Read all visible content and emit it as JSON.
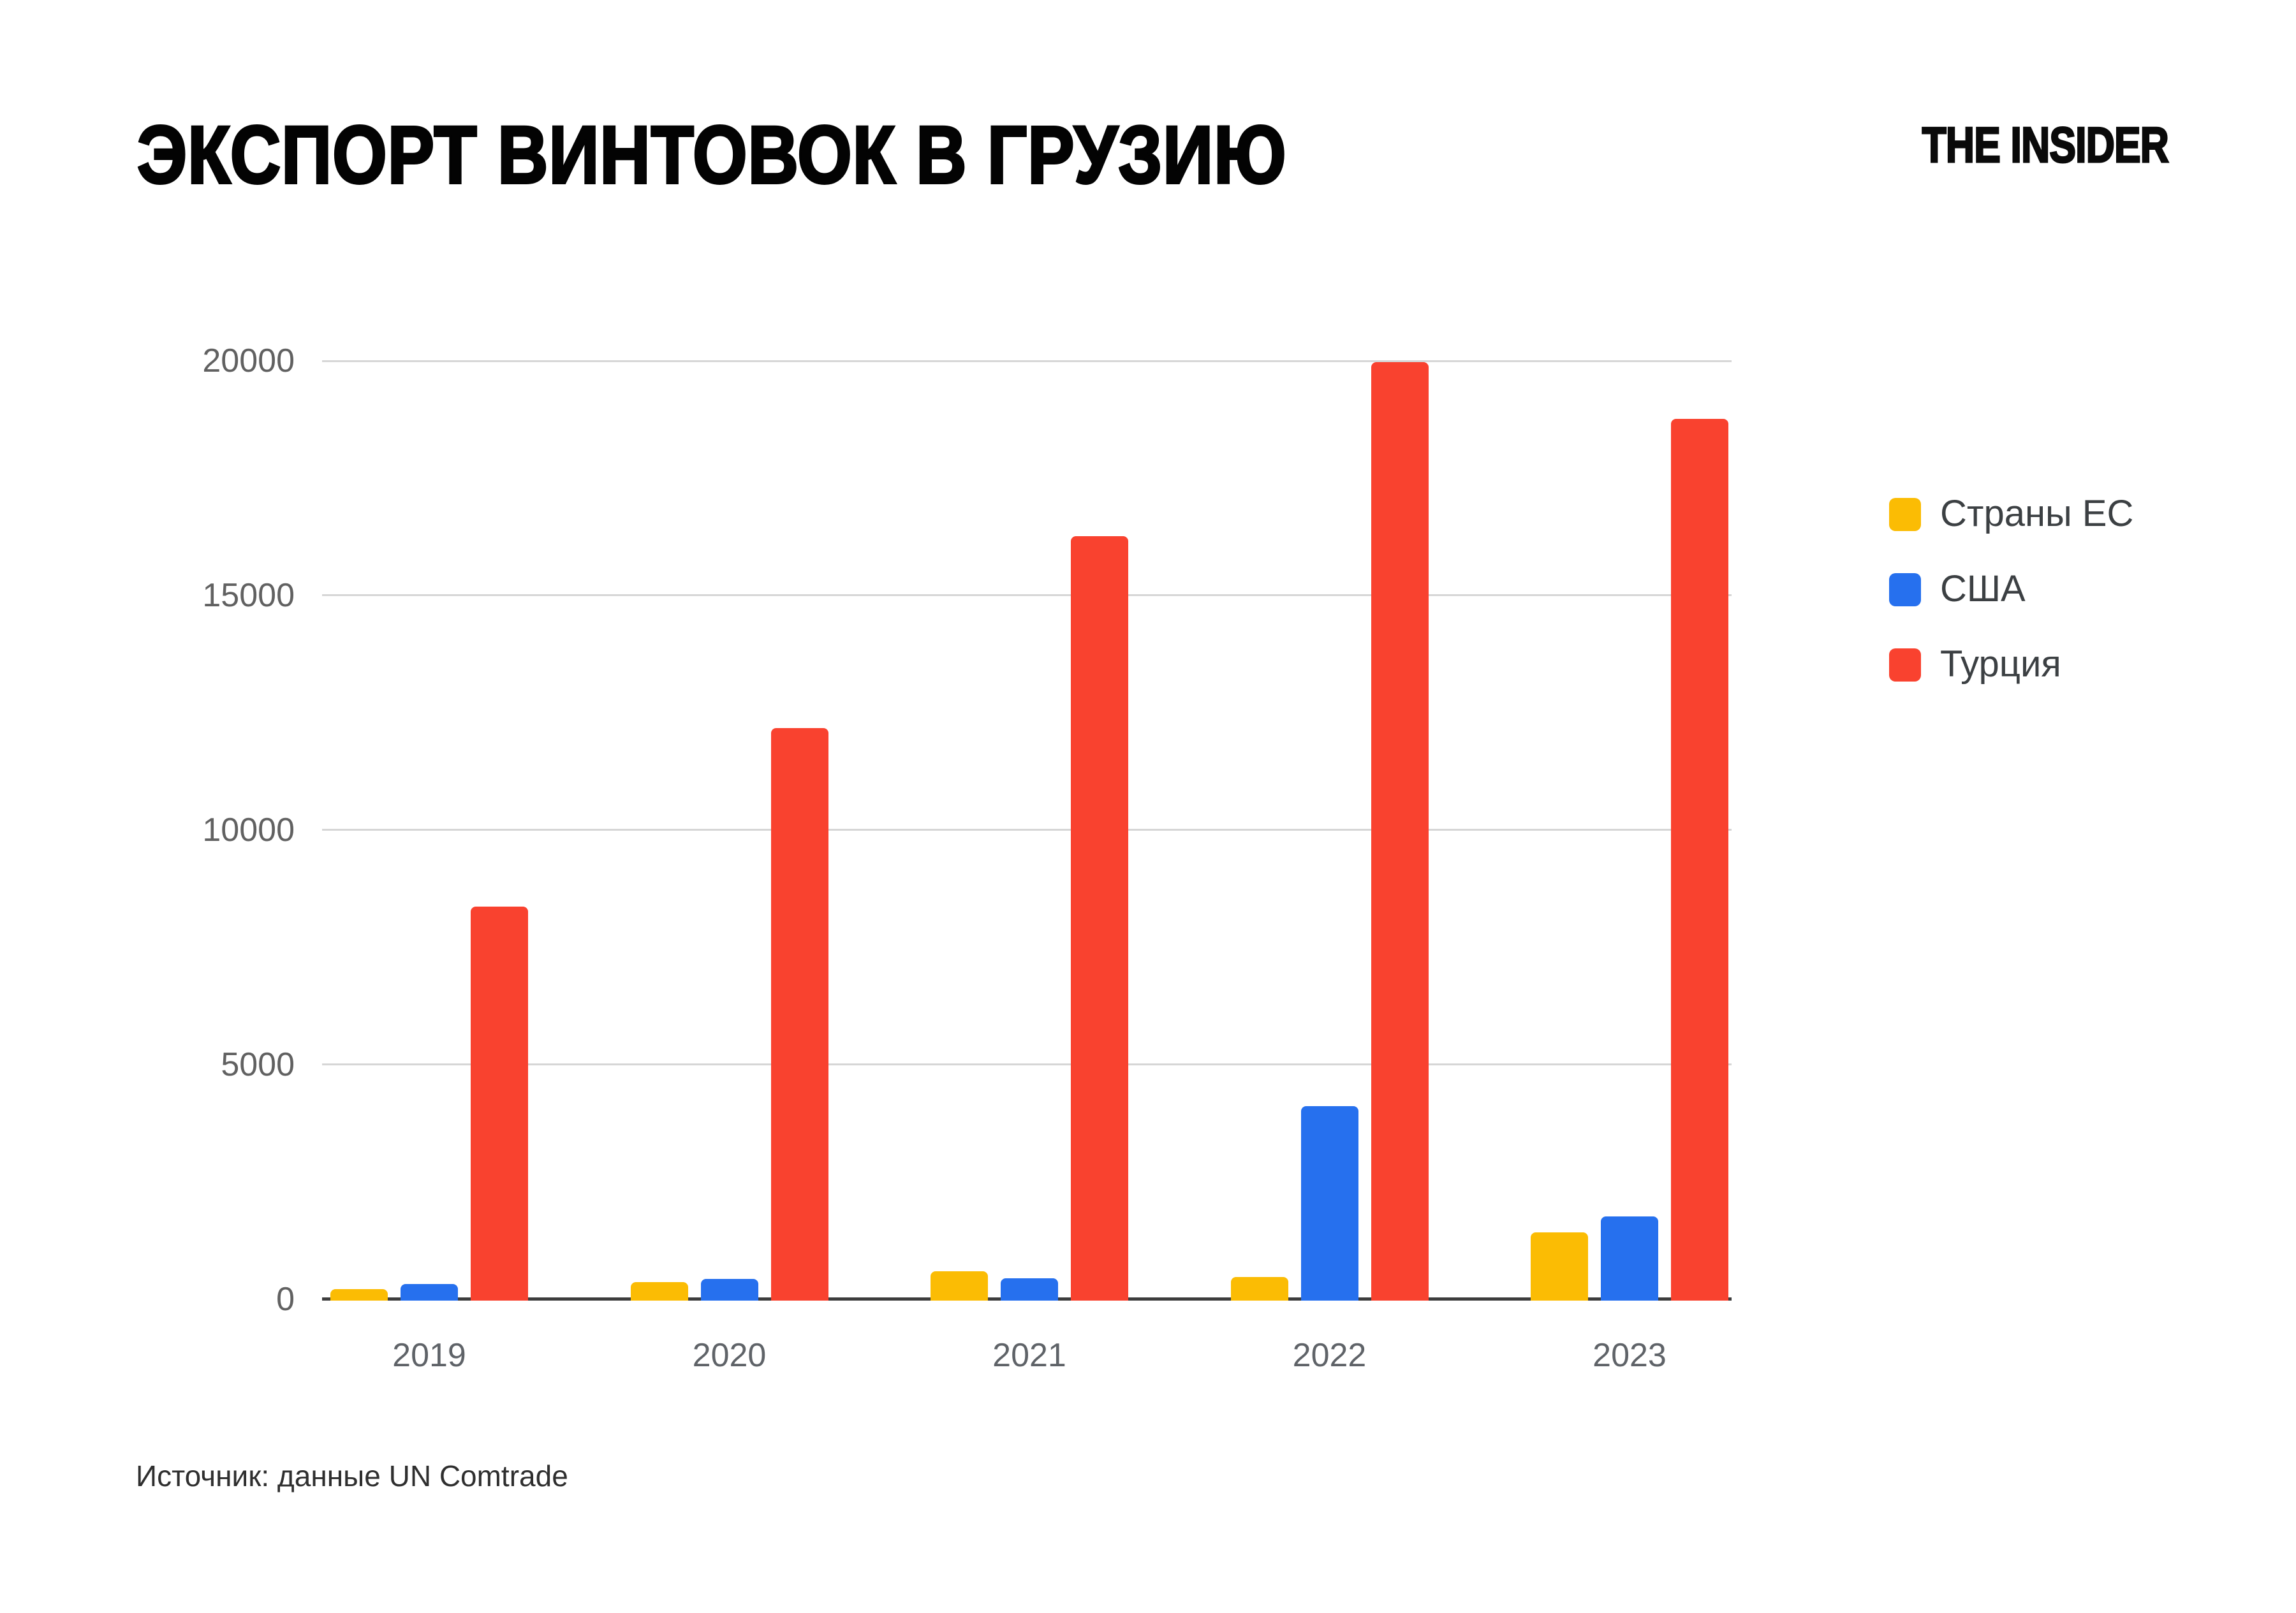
{
  "page": {
    "title": "ЭКСПОРТ ВИНТОВОК В ГРУЗИЮ",
    "logo": "THE INSIDER",
    "source": "Источник: данные UN Comtrade"
  },
  "chart_data": {
    "type": "bar",
    "title": "ЭКСПОРТ ВИНТОВОК В ГРУЗИЮ",
    "categories": [
      "2019",
      "2020",
      "2021",
      "2022",
      "2023"
    ],
    "series": [
      {
        "id": "eu",
        "name": "Страны ЕС",
        "color": "#FBBC04",
        "values": [
          250,
          400,
          620,
          500,
          1450
        ]
      },
      {
        "id": "usa",
        "name": "США",
        "color": "#2670EE",
        "values": [
          350,
          460,
          470,
          4150,
          1800
        ]
      },
      {
        "id": "turkey",
        "name": "Турция",
        "color": "#F9422F",
        "values": [
          8400,
          12200,
          16300,
          20000,
          18800
        ]
      }
    ],
    "ylim": [
      0,
      20000
    ],
    "yticks": [
      0,
      5000,
      10000,
      15000,
      20000
    ],
    "grid": true,
    "legend_position": "right",
    "xlabel": "",
    "ylabel": ""
  }
}
